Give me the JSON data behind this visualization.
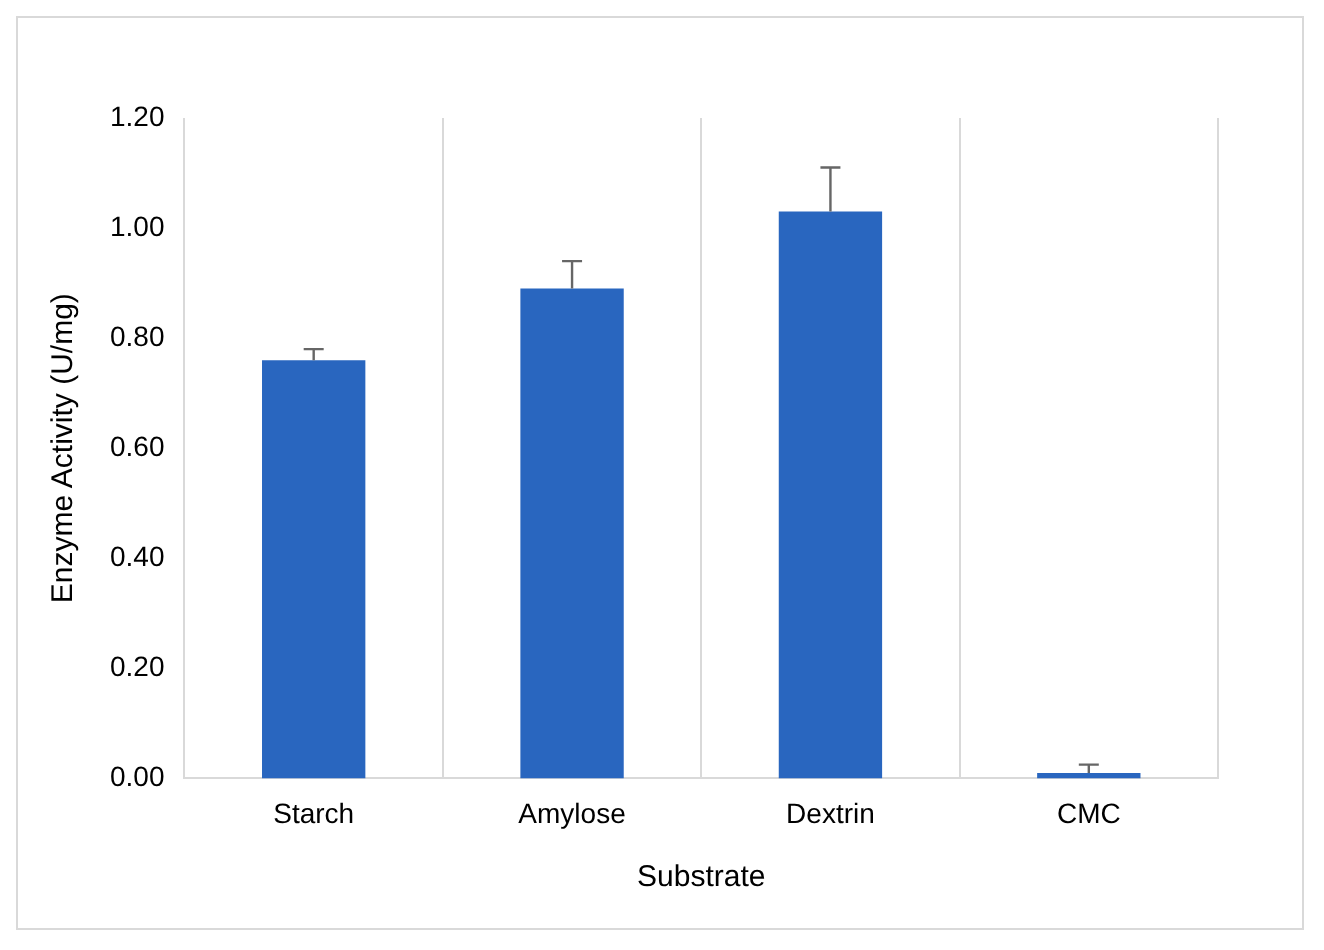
{
  "chart_data": {
    "type": "bar",
    "xlabel": "Substrate",
    "ylabel": "Enzyme Activity (U/mg)",
    "categories": [
      "Starch",
      "Amylose",
      "Dextrin",
      "CMC"
    ],
    "values": [
      0.76,
      0.89,
      1.03,
      0.01
    ],
    "errors": [
      [
        0.76,
        0.78
      ],
      [
        0.89,
        0.94
      ],
      [
        1.03,
        1.11
      ],
      [
        0.01,
        0.025
      ]
    ],
    "color": "#2966bf",
    "ylim": [
      0,
      1.2
    ],
    "yticks": [
      {
        "value": 0,
        "label": "0.00"
      },
      {
        "value": 0.2,
        "label": "0.20"
      },
      {
        "value": 0.4,
        "label": "0.40"
      },
      {
        "value": 0.6,
        "label": "0.60"
      },
      {
        "value": 0.8,
        "label": "0.80"
      },
      {
        "value": 1,
        "label": "1.00"
      },
      {
        "value": 1.2,
        "label": "1.20"
      }
    ],
    "grid": "x",
    "legend": false
  }
}
